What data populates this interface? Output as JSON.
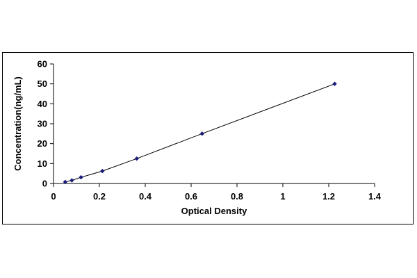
{
  "chart_data": {
    "type": "scatter",
    "title": "",
    "xlabel": "Optical Density",
    "ylabel": "Concentration(ng/mL)",
    "xlim": [
      0,
      1.4
    ],
    "ylim": [
      0,
      60
    ],
    "xticks": [
      0,
      0.2,
      0.4,
      0.6,
      0.8,
      1,
      1.2,
      1.4
    ],
    "xtick_labels": [
      "0",
      "0.2",
      "0.4",
      "0.6",
      "0.8",
      "1",
      "1.2",
      "1.4"
    ],
    "yticks": [
      0,
      10,
      20,
      30,
      40,
      50,
      60
    ],
    "ytick_labels": [
      "0",
      "10",
      "20",
      "30",
      "40",
      "50",
      "60"
    ],
    "grid": false,
    "legend": "none",
    "marker": "diamond",
    "series": [
      {
        "x": [
          0.051,
          0.08,
          0.12,
          0.213,
          0.363,
          0.648,
          1.226
        ],
        "y": [
          0.78,
          1.56,
          3.12,
          6.25,
          12.5,
          25,
          50
        ]
      }
    ],
    "trendline": true,
    "colors": {
      "marker": "#1a1a7a",
      "line": "#000000",
      "axis": "#000000"
    }
  }
}
